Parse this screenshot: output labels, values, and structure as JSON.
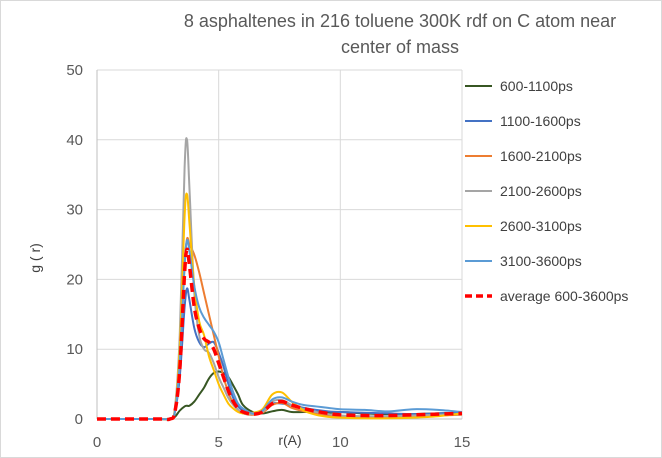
{
  "chart_data": {
    "type": "line",
    "title": "8 asphaltenes in 216 toluene 300K rdf on C atom near center of mass",
    "title_lines": [
      "8 asphaltenes in 216 toluene 300K rdf on C atom near",
      "center of mass"
    ],
    "xlabel": "r(A)",
    "ylabel": "g ( r)",
    "xlim": [
      0,
      15
    ],
    "ylim": [
      0,
      50
    ],
    "xticks": [
      0,
      5,
      10,
      15
    ],
    "yticks": [
      0,
      10,
      20,
      30,
      40,
      50
    ],
    "grid": true,
    "legend_position": "right",
    "x": [
      0,
      2.5,
      3.0,
      3.2,
      3.4,
      3.6,
      3.7,
      3.8,
      4.0,
      4.2,
      4.4,
      4.6,
      4.8,
      5.0,
      5.2,
      5.4,
      5.6,
      5.8,
      6.0,
      6.4,
      6.8,
      7.2,
      7.6,
      8.0,
      8.5,
      9,
      9.5,
      10,
      11,
      12,
      13,
      14,
      15
    ],
    "series": [
      {
        "name": "600-1100ps",
        "color": "#375623",
        "dashed": false,
        "values": [
          0,
          0,
          0,
          0.3,
          1.2,
          1.8,
          1.9,
          1.9,
          2.5,
          3.5,
          4.5,
          5.8,
          6.6,
          6.8,
          6.6,
          6,
          4.8,
          3.5,
          2,
          1,
          0.8,
          1.1,
          1.3,
          1.0,
          1.0,
          1.0,
          0.9,
          1.0,
          0.8,
          0.7,
          0.7,
          0.8,
          0.9
        ]
      },
      {
        "name": "1100-1600ps",
        "color": "#4472C4",
        "dashed": false,
        "values": [
          0,
          0,
          0,
          1,
          6,
          16,
          18.7,
          17,
          13,
          11,
          10.3,
          10.8,
          11,
          9.5,
          7.5,
          5,
          3,
          1.8,
          1.2,
          0.8,
          1.2,
          2.2,
          2.2,
          2.0,
          1.6,
          1.3,
          1.1,
          1.0,
          0.9,
          0.8,
          0.7,
          0.8,
          0.9
        ]
      },
      {
        "name": "1600-2100ps",
        "color": "#ED7D31",
        "dashed": false,
        "values": [
          0,
          0,
          0,
          1,
          8,
          22,
          25.8,
          25,
          23.5,
          21,
          18,
          15,
          12,
          9,
          6,
          3.8,
          2.2,
          1.3,
          0.8,
          0.6,
          0.9,
          2.0,
          2.3,
          1.6,
          1.1,
          0.8,
          0.5,
          0.4,
          0.3,
          0.3,
          0.4,
          0.5,
          0.6
        ]
      },
      {
        "name": "2100-2600ps",
        "color": "#A5A5A5",
        "dashed": false,
        "values": [
          0,
          0,
          0,
          1.5,
          12,
          36,
          40,
          33,
          18,
          12,
          10,
          9.5,
          8,
          6,
          4.5,
          3,
          2,
          1.3,
          0.8,
          0.7,
          1.0,
          2.5,
          2.7,
          2.0,
          1.4,
          1.0,
          0.7,
          0.5,
          0.4,
          0.4,
          0.5,
          0.6,
          0.7
        ]
      },
      {
        "name": "2600-3100ps",
        "color": "#FFC000",
        "dashed": false,
        "values": [
          0,
          0,
          0,
          1.2,
          10,
          29,
          32.2,
          28,
          19,
          14,
          12,
          9,
          7,
          5,
          3.5,
          2.2,
          1.5,
          1.0,
          0.8,
          0.9,
          1.4,
          3.5,
          3.8,
          2.5,
          1.2,
          0.6,
          0.3,
          0.2,
          0.1,
          0.1,
          0.2,
          0.4,
          0.8
        ]
      },
      {
        "name": "3100-3600ps",
        "color": "#5B9BD5",
        "dashed": false,
        "values": [
          0,
          0,
          0,
          1,
          8,
          22,
          25.6,
          24,
          19,
          16,
          14.5,
          13.5,
          12.5,
          11,
          8.5,
          6,
          3.8,
          2.2,
          1.5,
          0.8,
          1.2,
          2.8,
          3.1,
          2.5,
          2.0,
          1.8,
          1.6,
          1.4,
          1.3,
          1.1,
          1.4,
          1.3,
          1.0
        ]
      },
      {
        "name": "average 600-3600ps",
        "color": "#FF0000",
        "dashed": true,
        "values": [
          0,
          0,
          0,
          1,
          7,
          21,
          24.3,
          22,
          16,
          13,
          11.5,
          11,
          10,
          8,
          6,
          4,
          2.5,
          1.5,
          1.0,
          0.7,
          1.0,
          2.2,
          2.5,
          2.0,
          1.5,
          1.1,
          0.8,
          0.6,
          0.5,
          0.5,
          0.6,
          0.7,
          0.8
        ]
      }
    ]
  }
}
